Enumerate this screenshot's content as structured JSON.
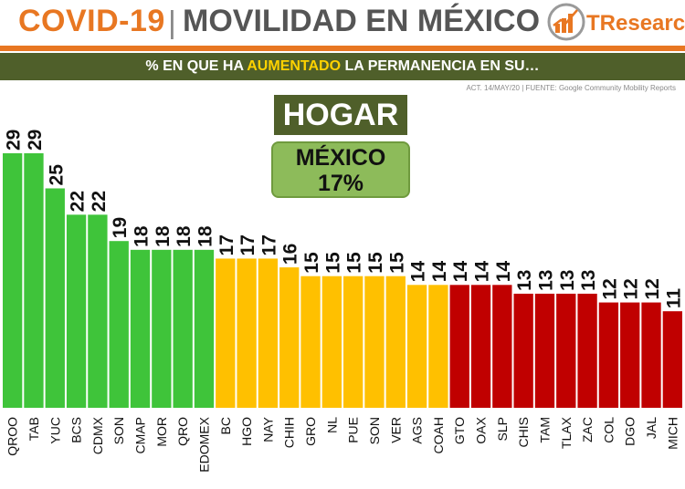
{
  "header": {
    "title_left": "COVID-19",
    "separator": "|",
    "title_right": "MOVILIDAD EN MÉXICO",
    "logo_text": "TResearch",
    "logo_icon": "chart-logo-icon"
  },
  "subtitle": {
    "prefix": "% EN QUE HA ",
    "highlight": "AUMENTADO",
    "suffix": " LA PERMANENCIA EN SU…"
  },
  "source": "ACT. 14/MAY/20 | FUENTE: Google Community Mobility Reports",
  "panel": {
    "category": "HOGAR",
    "national_label": "MÉXICO",
    "national_value": "17%"
  },
  "colors": {
    "orange": "#e87722",
    "olive": "#4f5f2a",
    "green": "#3fc43a",
    "yellow": "#ffc000",
    "red": "#c00000",
    "highlight": "#ffd200"
  },
  "chart_data": {
    "type": "bar",
    "categories": [
      "QROO",
      "TAB",
      "YUC",
      "BCS",
      "CDMX",
      "SON",
      "CMAP",
      "MOR",
      "QRO",
      "EDOMEX",
      "BC",
      "HGO",
      "NAY",
      "CHIH",
      "GRO",
      "NL",
      "PUE",
      "SON",
      "VER",
      "AGS",
      "COAH",
      "GTO",
      "OAX",
      "SLP",
      "CHIS",
      "TAM",
      "TLAX",
      "ZAC",
      "COL",
      "DGO",
      "JAL",
      "MICH"
    ],
    "values": [
      29,
      29,
      25,
      22,
      22,
      19,
      18,
      18,
      18,
      18,
      17,
      17,
      17,
      16,
      15,
      15,
      15,
      15,
      15,
      14,
      14,
      14,
      14,
      14,
      13,
      13,
      13,
      13,
      12,
      12,
      12,
      11
    ],
    "bar_colors": [
      "green",
      "green",
      "green",
      "green",
      "green",
      "green",
      "green",
      "green",
      "green",
      "green",
      "yellow",
      "yellow",
      "yellow",
      "yellow",
      "yellow",
      "yellow",
      "yellow",
      "yellow",
      "yellow",
      "yellow",
      "yellow",
      "red",
      "red",
      "red",
      "red",
      "red",
      "red",
      "red",
      "red",
      "red",
      "red",
      "red"
    ],
    "ylim": [
      0,
      29
    ],
    "grid": false,
    "title": "",
    "xlabel": "",
    "ylabel": ""
  }
}
